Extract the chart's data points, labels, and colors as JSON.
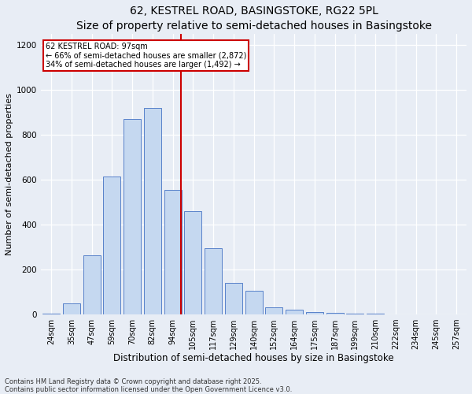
{
  "title": "62, KESTREL ROAD, BASINGSTOKE, RG22 5PL",
  "subtitle": "Size of property relative to semi-detached houses in Basingstoke",
  "xlabel": "Distribution of semi-detached houses by size in Basingstoke",
  "ylabel": "Number of semi-detached properties",
  "categories": [
    "24sqm",
    "35sqm",
    "47sqm",
    "59sqm",
    "70sqm",
    "82sqm",
    "94sqm",
    "105sqm",
    "117sqm",
    "129sqm",
    "140sqm",
    "152sqm",
    "164sqm",
    "175sqm",
    "187sqm",
    "199sqm",
    "210sqm",
    "222sqm",
    "234sqm",
    "245sqm",
    "257sqm"
  ],
  "values": [
    5,
    50,
    265,
    615,
    870,
    920,
    555,
    460,
    295,
    140,
    105,
    30,
    20,
    10,
    8,
    4,
    2,
    1,
    0,
    0,
    1
  ],
  "bar_color": "#c5d8f0",
  "bar_edge_color": "#4472c4",
  "vline_color": "#cc0000",
  "vline_pos": 6.42,
  "annotation_title": "62 KESTREL ROAD: 97sqm",
  "annotation_line1": "← 66% of semi-detached houses are smaller (2,872)",
  "annotation_line2": "34% of semi-detached houses are larger (1,492) →",
  "annotation_box_facecolor": "#ffffff",
  "annotation_box_edgecolor": "#cc0000",
  "ylim": [
    0,
    1250
  ],
  "yticks": [
    0,
    200,
    400,
    600,
    800,
    1000,
    1200
  ],
  "bg_color": "#e8edf5",
  "grid_color": "#ffffff",
  "title_fontsize": 10,
  "subtitle_fontsize": 9,
  "ylabel_fontsize": 8,
  "xlabel_fontsize": 8.5,
  "tick_fontsize": 7,
  "annotation_fontsize": 7,
  "footer_fontsize": 6,
  "footer": "Contains HM Land Registry data © Crown copyright and database right 2025.\nContains public sector information licensed under the Open Government Licence v3.0."
}
